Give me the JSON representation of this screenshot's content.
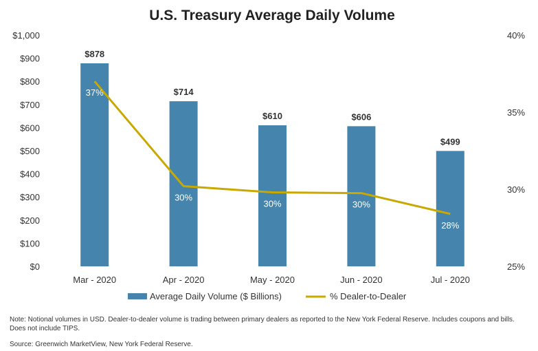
{
  "chart_data": {
    "type": "bar",
    "title": "U.S. Treasury Average Daily Volume",
    "categories": [
      "Mar - 2020",
      "Apr - 2020",
      "May - 2020",
      "Jun - 2020",
      "Jul - 2020"
    ],
    "series": [
      {
        "name": "Average Daily Volume ($ Billions)",
        "type": "bar",
        "axis": "left",
        "values": [
          878,
          714,
          610,
          606,
          499
        ],
        "labels": [
          "$878",
          "$714",
          "$610",
          "$606",
          "$499"
        ],
        "color": "#4584ad"
      },
      {
        "name": "% Dealer-to-Dealer",
        "type": "line",
        "axis": "right",
        "values": [
          37.0,
          30.2,
          29.8,
          29.75,
          28.4
        ],
        "labels": [
          "37%",
          "30%",
          "30%",
          "30%",
          "28%"
        ],
        "color": "#c9a800"
      }
    ],
    "left_axis": {
      "ylim": [
        0,
        1000
      ],
      "ticks": [
        "$0",
        "$100",
        "$200",
        "$300",
        "$400",
        "$500",
        "$600",
        "$700",
        "$800",
        "$900",
        "$1,000"
      ]
    },
    "right_axis": {
      "ylim": [
        25,
        40
      ],
      "ticks": [
        "25%",
        "30%",
        "35%",
        "40%"
      ]
    },
    "legend_position": "bottom"
  },
  "note": "Note: Notional volumes in USD. Dealer-to-dealer volume is trading between primary dealers as reported to the New York Federal Reserve. Includes coupons and bills. Does not include TIPS.",
  "source": "Source: Greenwich MarketView, New York Federal Reserve."
}
